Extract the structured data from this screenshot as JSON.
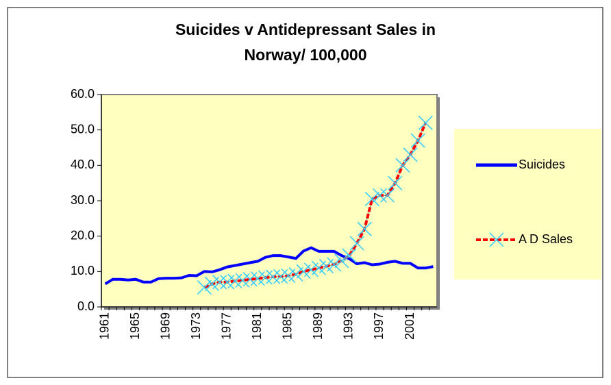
{
  "chart_data": {
    "type": "line",
    "title": "Suicides v Antidepressant Sales in Norway/ 100,000",
    "categories": [
      "1961",
      null,
      null,
      null,
      "1965",
      null,
      null,
      null,
      "1969",
      null,
      null,
      null,
      "1973",
      null,
      null,
      null,
      "1977",
      null,
      null,
      null,
      "1981",
      null,
      null,
      null,
      "1985",
      null,
      null,
      null,
      "1989",
      null,
      null,
      null,
      "1993",
      null,
      null,
      null,
      "1997",
      null,
      null,
      null,
      "2001",
      null,
      null,
      null
    ],
    "series": [
      {
        "name": "Suicides",
        "color": "#0000ff",
        "values": [
          6.5,
          7.8,
          7.8,
          7.6,
          7.8,
          7.0,
          7.0,
          8.0,
          8.1,
          8.1,
          8.2,
          8.9,
          8.8,
          10.0,
          9.9,
          10.5,
          11.3,
          11.7,
          12.1,
          12.5,
          12.9,
          14.0,
          14.5,
          14.5,
          14.1,
          13.7,
          15.8,
          16.7,
          15.7,
          15.7,
          15.7,
          14.5,
          13.6,
          12.2,
          12.5,
          11.9,
          12.1,
          12.6,
          12.9,
          12.3,
          12.3,
          11.0,
          11.0,
          11.4
        ]
      },
      {
        "name": "A D Sales",
        "color": "#ff0000",
        "marker_color": "#33ccff",
        "values": [
          null,
          null,
          null,
          null,
          null,
          null,
          null,
          null,
          null,
          null,
          null,
          null,
          null,
          5.5,
          6.5,
          7.0,
          7.0,
          7.3,
          7.5,
          7.8,
          8.0,
          8.3,
          8.5,
          8.6,
          8.8,
          9.2,
          10.0,
          10.5,
          11.0,
          11.5,
          12.0,
          13.0,
          14.5,
          18.0,
          22.0,
          30.5,
          31.5,
          31.5,
          35.0,
          40.0,
          43.0,
          47.0,
          52.0,
          null
        ]
      }
    ],
    "ylim": [
      0,
      60
    ],
    "yticks": [
      {
        "value": 0,
        "label": "0.0"
      },
      {
        "value": 10,
        "label": "10.0"
      },
      {
        "value": 20,
        "label": "20.0"
      },
      {
        "value": 30,
        "label": "30.0"
      },
      {
        "value": 40,
        "label": "40.0"
      },
      {
        "value": 50,
        "label": "50.0"
      },
      {
        "value": 60,
        "label": "60.0"
      }
    ],
    "legend": "right",
    "background": "#ffffc0"
  }
}
